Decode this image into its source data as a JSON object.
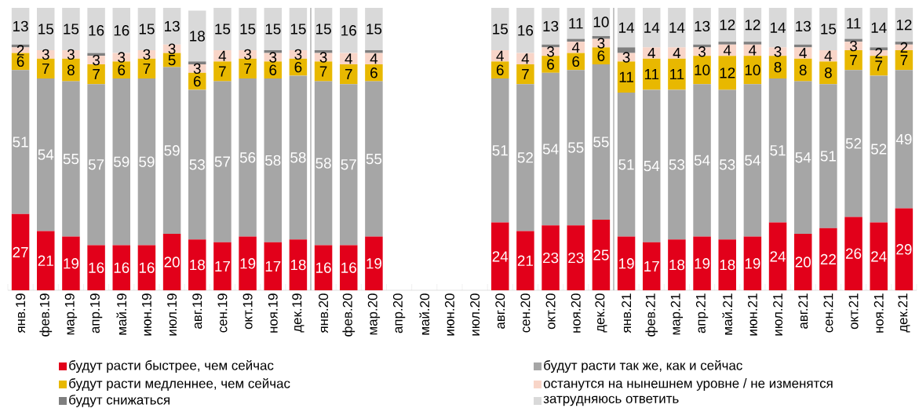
{
  "chart_data": {
    "type": "bar",
    "stacked": true,
    "data_labels": true,
    "legend": "bottom",
    "ylim": [
      0,
      100
    ],
    "categories": [
      "янв.19",
      "фев.19",
      "мар.19",
      "апр.19",
      "май.19",
      "июн.19",
      "июл.19",
      "авг.19",
      "сен.19",
      "окт.19",
      "ноя.19",
      "дек.19",
      "янв.20",
      "фев.20",
      "мар.20",
      "апр.20",
      "май.20",
      "июн.20",
      "июл.20",
      "авг.20",
      "сен.20",
      "окт.20",
      "ноя.20",
      "дек.20",
      "янв.21",
      "фев.21",
      "мар.21",
      "апр.21",
      "май.21",
      "июн.21",
      "июл.21",
      "авг.21",
      "сен.21",
      "окт.21",
      "ноя.21",
      "дек.21"
    ],
    "series": [
      {
        "name": "будут расти быстрее, чем сейчас",
        "color": "#e2001a",
        "values": [
          27,
          21,
          19,
          16,
          16,
          16,
          20,
          18,
          17,
          19,
          17,
          18,
          16,
          16,
          19,
          null,
          null,
          null,
          null,
          24,
          21,
          23,
          23,
          25,
          19,
          17,
          18,
          19,
          18,
          19,
          24,
          20,
          22,
          26,
          24,
          29
        ]
      },
      {
        "name": "будут расти так же, как и сейчас",
        "color": "#a6a6a6",
        "values": [
          51,
          54,
          55,
          57,
          59,
          59,
          59,
          53,
          57,
          56,
          58,
          58,
          58,
          57,
          55,
          null,
          null,
          null,
          null,
          51,
          52,
          54,
          55,
          55,
          51,
          54,
          53,
          54,
          53,
          54,
          51,
          54,
          51,
          52,
          52,
          49
        ]
      },
      {
        "name": "будут расти медленнее, чем сейчас",
        "color": "#e8b800",
        "values": [
          6,
          7,
          8,
          7,
          6,
          7,
          5,
          6,
          7,
          7,
          6,
          6,
          7,
          7,
          6,
          null,
          null,
          null,
          null,
          6,
          7,
          6,
          6,
          6,
          11,
          11,
          11,
          10,
          12,
          10,
          8,
          8,
          8,
          7,
          7,
          7
        ]
      },
      {
        "name": "останутся на нынешнем уровне / не изменятся",
        "color": "#f8d5c8",
        "values": [
          2,
          3,
          3,
          3,
          3,
          3,
          3,
          3,
          4,
          3,
          3,
          3,
          3,
          4,
          4,
          null,
          null,
          null,
          null,
          4,
          4,
          3,
          4,
          3,
          3,
          4,
          4,
          3,
          4,
          4,
          3,
          4,
          4,
          3,
          2,
          2
        ]
      },
      {
        "name": "будут снижаться",
        "color": "#7f7f7f",
        "values": [
          1,
          0,
          0,
          1,
          0,
          0,
          0,
          1,
          0,
          0,
          1,
          0,
          1,
          0,
          1,
          null,
          null,
          null,
          null,
          0,
          0,
          1,
          1,
          1,
          2,
          0,
          0,
          1,
          1,
          1,
          0,
          1,
          0,
          1,
          1,
          1
        ],
        "value_labels": [
          null,
          null,
          null,
          null,
          null,
          null,
          null,
          null,
          null,
          null,
          null,
          null,
          null,
          null,
          null,
          null,
          null,
          null,
          null,
          null,
          null,
          null,
          null,
          null,
          null,
          null,
          null,
          null,
          null,
          null,
          null,
          null,
          null,
          null,
          null,
          null
        ]
      },
      {
        "name": "затрудняюсь ответить",
        "color": "#d9d9d9",
        "values": [
          13,
          15,
          15,
          16,
          16,
          15,
          13,
          18,
          15,
          15,
          15,
          15,
          15,
          16,
          15,
          null,
          null,
          null,
          null,
          15,
          16,
          13,
          11,
          10,
          14,
          14,
          14,
          13,
          12,
          12,
          14,
          13,
          15,
          11,
          14,
          12
        ]
      }
    ]
  }
}
